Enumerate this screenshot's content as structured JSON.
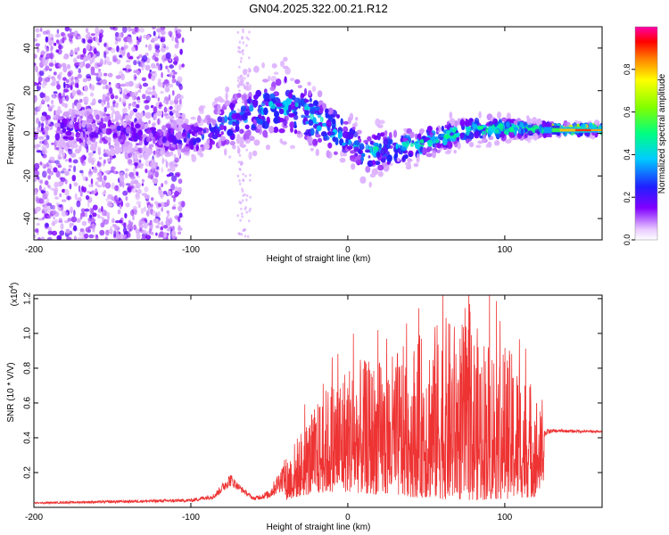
{
  "title": "GN04.2025.322.00.21.R12",
  "chart_data": [
    {
      "type": "heatmap",
      "name": "spectrogram",
      "xlabel": "Height of straight line (km)",
      "ylabel": "Frequency (Hz)",
      "xlim": [
        -200,
        162
      ],
      "ylim": [
        -50,
        50
      ],
      "xticks": [
        -200,
        -100,
        0,
        100
      ],
      "xtick_labels": [
        "-200",
        "-100",
        "0",
        "100"
      ],
      "yticks": [
        -40,
        -20,
        0,
        20,
        40
      ],
      "ytick_labels": [
        "-40",
        "-20",
        "0",
        "20",
        "40"
      ],
      "colorbar": {
        "label": "Normalized spectral amplitude",
        "range": [
          0,
          1
        ],
        "ticks": [
          0.0,
          0.2,
          0.4,
          0.6,
          0.8
        ],
        "tick_labels": [
          "0.0",
          "0.2",
          "0.4",
          "0.6",
          "0.8"
        ]
      },
      "ridge": {
        "x": [
          -180,
          -160,
          -140,
          -120,
          -100,
          -80,
          -60,
          -40,
          -20,
          0,
          10,
          20,
          40,
          60,
          80,
          100,
          120,
          140,
          160
        ],
        "center_hz": [
          2,
          2,
          0,
          -2,
          -2,
          4,
          10,
          14,
          6,
          -2,
          -10,
          -8,
          -6,
          -2,
          2,
          2,
          2,
          2,
          2
        ],
        "spread_hz": [
          6,
          6,
          6,
          6,
          6,
          8,
          9,
          10,
          9,
          7,
          6,
          6,
          5,
          4,
          4,
          3,
          2,
          1.5,
          1.5
        ],
        "amplitude": [
          0.2,
          0.2,
          0.2,
          0.2,
          0.25,
          0.3,
          0.35,
          0.4,
          0.4,
          0.4,
          0.4,
          0.45,
          0.45,
          0.5,
          0.5,
          0.55,
          0.6,
          0.9,
          0.85
        ]
      },
      "noise_region_x": [
        -200,
        -105
      ]
    },
    {
      "type": "line",
      "name": "snr",
      "xlabel": "Height of straight line (km)",
      "ylabel": "SNR (10 * V/V)",
      "y_scale_label": "(x10",
      "y_scale_exp": "4",
      "y_scale_close": ")",
      "xlim": [
        -200,
        162
      ],
      "ylim": [
        0,
        1.22
      ],
      "xticks": [
        -200,
        -100,
        0,
        100
      ],
      "xtick_labels": [
        "-200",
        "-100",
        "0",
        "100"
      ],
      "yticks": [
        0.2,
        0.4,
        0.6,
        0.8,
        1.0,
        1.2
      ],
      "ytick_labels": [
        "0.2",
        "0.4",
        "0.6",
        "0.8",
        "1.0",
        "1.2"
      ],
      "color": "#ee3333",
      "envelope": {
        "x": [
          -200,
          -150,
          -100,
          -85,
          -75,
          -70,
          -60,
          -50,
          -40,
          -30,
          -20,
          -10,
          0,
          20,
          40,
          60,
          80,
          100,
          120,
          125,
          130,
          162
        ],
        "base": [
          0.02,
          0.025,
          0.03,
          0.05,
          0.12,
          0.1,
          0.04,
          0.05,
          0.1,
          0.16,
          0.2,
          0.22,
          0.22,
          0.18,
          0.15,
          0.12,
          0.1,
          0.12,
          0.15,
          0.4,
          0.43,
          0.43
        ],
        "peak": [
          0.03,
          0.04,
          0.05,
          0.08,
          0.2,
          0.14,
          0.06,
          0.1,
          0.28,
          0.45,
          0.6,
          0.75,
          0.85,
          0.85,
          0.95,
          1.1,
          1.05,
          0.95,
          0.7,
          0.45,
          0.45,
          0.44
        ]
      }
    }
  ]
}
